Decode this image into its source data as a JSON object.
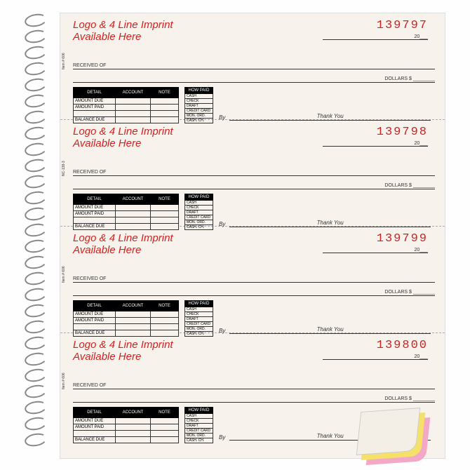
{
  "logo_text_1": "Logo & 4 Line Imprint",
  "logo_text_2": "Available Here",
  "date_twenty": "20",
  "received_label": "RECEIVED OF",
  "dollars_label": "DOLLARS $",
  "by_label": "By",
  "thank_you": "Thank You",
  "side_label": "NC-138-3",
  "item_label": "Item # 606",
  "detail_headers": [
    "DETAIL",
    "ACCOUNT",
    "NOTE"
  ],
  "howpaid_header": "HOW PAID",
  "detail_rows": [
    "AMOUNT DUE",
    "AMOUNT PAID",
    "",
    "BALANCE DUE"
  ],
  "howpaid_rows": [
    "CASH",
    "CHECK",
    "DRAFT",
    "CREDIT CARD",
    "MON. ORD.",
    "CASH. CH."
  ],
  "receipts": [
    {
      "number": "139797"
    },
    {
      "number": "139798"
    },
    {
      "number": "139799"
    },
    {
      "number": "139800"
    }
  ],
  "colors": {
    "red": "#d42020",
    "paper": "#f7f3ec",
    "pink": "#f4a8c8",
    "yellow": "#f5e06a"
  }
}
